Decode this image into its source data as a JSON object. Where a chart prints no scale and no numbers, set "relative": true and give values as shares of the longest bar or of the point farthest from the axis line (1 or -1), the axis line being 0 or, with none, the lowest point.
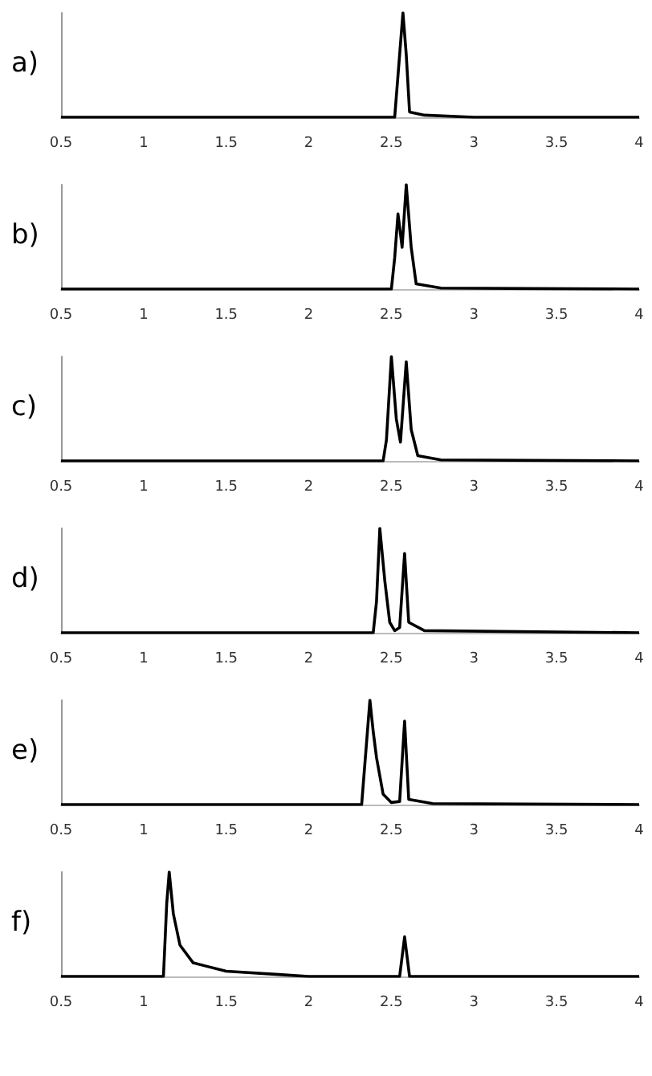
{
  "chart_data": [
    {
      "type": "line",
      "title": "a)",
      "relative": true,
      "tick_labels": "x",
      "marker": "none",
      "line_style": "solid",
      "xlim": [
        0.5,
        4
      ],
      "xticks": [
        0.5,
        1,
        1.5,
        2,
        2.5,
        3,
        3.5,
        4
      ],
      "series": [
        {
          "color": "#000000",
          "x": [
            0.5,
            2.52,
            2.55,
            2.57,
            2.59,
            2.61,
            2.7,
            3.0,
            4
          ],
          "values": [
            0,
            0,
            0.6,
            1,
            0.6,
            0.05,
            0.02,
            0,
            0
          ]
        }
      ]
    },
    {
      "type": "line",
      "title": "b)",
      "relative": true,
      "tick_labels": "x",
      "marker": "none",
      "line_style": "solid",
      "xlim": [
        0.5,
        4
      ],
      "xticks": [
        0.5,
        1,
        1.5,
        2,
        2.5,
        3,
        3.5,
        4
      ],
      "series": [
        {
          "color": "#000000",
          "x": [
            0.5,
            2.5,
            2.52,
            2.54,
            2.565,
            2.59,
            2.62,
            2.65,
            2.8,
            4
          ],
          "values": [
            0,
            0,
            0.3,
            0.72,
            0.4,
            1,
            0.4,
            0.05,
            0.01,
            0
          ]
        }
      ]
    },
    {
      "type": "line",
      "title": "c)",
      "relative": true,
      "tick_labels": "x",
      "marker": "none",
      "line_style": "solid",
      "xlim": [
        0.5,
        4
      ],
      "xticks": [
        0.5,
        1,
        1.5,
        2,
        2.5,
        3,
        3.5,
        4
      ],
      "series": [
        {
          "color": "#000000",
          "x": [
            0.5,
            2.45,
            2.47,
            2.5,
            2.53,
            2.555,
            2.59,
            2.62,
            2.66,
            2.8,
            4
          ],
          "values": [
            0,
            0,
            0.2,
            1,
            0.4,
            0.18,
            0.95,
            0.3,
            0.05,
            0.01,
            0
          ]
        }
      ]
    },
    {
      "type": "line",
      "title": "d)",
      "relative": true,
      "tick_labels": "x",
      "marker": "none",
      "line_style": "solid",
      "xlim": [
        0.5,
        4
      ],
      "xticks": [
        0.5,
        1,
        1.5,
        2,
        2.5,
        3,
        3.5,
        4
      ],
      "series": [
        {
          "color": "#000000",
          "x": [
            0.5,
            2.39,
            2.41,
            2.43,
            2.46,
            2.49,
            2.52,
            2.55,
            2.58,
            2.605,
            2.7,
            4
          ],
          "values": [
            0,
            0,
            0.3,
            1,
            0.5,
            0.1,
            0.02,
            0.05,
            0.76,
            0.1,
            0.02,
            0
          ]
        }
      ]
    },
    {
      "type": "line",
      "title": "e)",
      "relative": true,
      "tick_labels": "x",
      "marker": "none",
      "line_style": "solid",
      "xlim": [
        0.5,
        4
      ],
      "xticks": [
        0.5,
        1,
        1.5,
        2,
        2.5,
        3,
        3.5,
        4
      ],
      "series": [
        {
          "color": "#000000",
          "x": [
            0.5,
            2.32,
            2.35,
            2.37,
            2.39,
            2.41,
            2.45,
            2.5,
            2.55,
            2.58,
            2.605,
            2.75,
            4
          ],
          "values": [
            0,
            0,
            0.6,
            1,
            0.7,
            0.45,
            0.1,
            0.02,
            0.03,
            0.8,
            0.05,
            0.01,
            0
          ]
        }
      ]
    },
    {
      "type": "line",
      "title": "f)",
      "relative": true,
      "tick_labels": "x",
      "marker": "none",
      "line_style": "solid",
      "xlim": [
        0.5,
        4
      ],
      "xticks": [
        0.5,
        1,
        1.5,
        2,
        2.5,
        3,
        3.5,
        4
      ],
      "series": [
        {
          "color": "#000000",
          "x": [
            0.5,
            1.12,
            1.14,
            1.155,
            1.18,
            1.22,
            1.3,
            1.5,
            1.8,
            2.0,
            2.55,
            2.58,
            2.61,
            4
          ],
          "values": [
            0,
            0,
            0.7,
            1,
            0.6,
            0.3,
            0.13,
            0.05,
            0.02,
            0,
            0,
            0.38,
            0,
            0
          ]
        }
      ]
    }
  ]
}
